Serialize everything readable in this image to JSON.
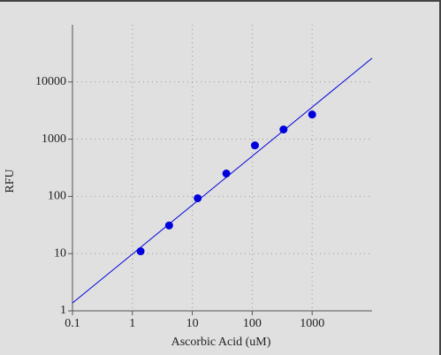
{
  "chart_data": {
    "type": "scatter",
    "x_label": "Ascorbic Acid (uM)",
    "y_label": "RFU",
    "xscale": "log",
    "yscale": "log",
    "grid": true,
    "xlim": [
      0.1,
      10000
    ],
    "ylim": [
      1,
      100000
    ],
    "xticks": [
      0.1,
      1,
      10,
      100,
      1000
    ],
    "yticks": [
      1,
      10,
      100,
      1000,
      10000
    ],
    "series": [
      {
        "kind": "points",
        "color": "#0000dd",
        "x": [
          1.37,
          4.1,
          12.3,
          37,
          111,
          333,
          1000
        ],
        "values": [
          11,
          31,
          93,
          251,
          780,
          1480,
          2700
        ]
      },
      {
        "kind": "line",
        "color": "#0000dd",
        "x": [
          0.1,
          10000
        ],
        "values": [
          1.37,
          26000
        ]
      }
    ]
  }
}
